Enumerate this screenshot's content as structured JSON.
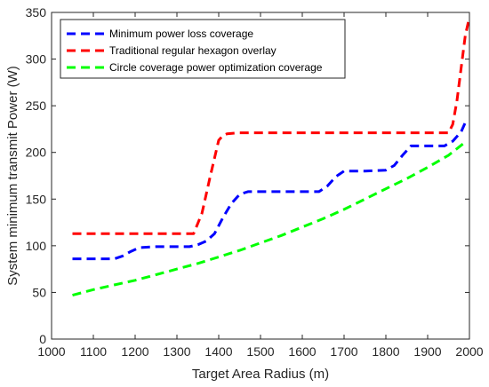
{
  "chart_data": {
    "type": "line",
    "title": "",
    "xlabel": "Target Area Radius (m)",
    "ylabel": "System minimum transmit Power (W)",
    "xlim": [
      1000,
      2000
    ],
    "ylim": [
      0,
      350
    ],
    "xticks": [
      1000,
      1100,
      1200,
      1300,
      1400,
      1500,
      1600,
      1700,
      1800,
      1900,
      2000
    ],
    "yticks": [
      0,
      50,
      100,
      150,
      200,
      250,
      300,
      350
    ],
    "grid": false,
    "legend_position": "top-left",
    "line_style": "dashed",
    "series": [
      {
        "name": "Minimum power loss coverage",
        "color": "#0000ff",
        "x": [
          1050,
          1100,
          1150,
          1170,
          1190,
          1210,
          1250,
          1300,
          1330,
          1350,
          1370,
          1390,
          1410,
          1430,
          1450,
          1470,
          1500,
          1550,
          1600,
          1640,
          1660,
          1680,
          1700,
          1750,
          1800,
          1820,
          1840,
          1860,
          1900,
          1940,
          1960,
          1980,
          1990
        ],
        "y": [
          86,
          86,
          86,
          89,
          94,
          98,
          99,
          99,
          99,
          101,
          105,
          113,
          130,
          145,
          155,
          158,
          158,
          158,
          158,
          158,
          164,
          174,
          180,
          180,
          181,
          186,
          197,
          207,
          207,
          207,
          212,
          222,
          232
        ]
      },
      {
        "name": "Traditional regular hexagon overlay",
        "color": "#ff0000",
        "x": [
          1050,
          1100,
          1200,
          1300,
          1340,
          1360,
          1380,
          1400,
          1410,
          1420,
          1450,
          1500,
          1600,
          1700,
          1800,
          1900,
          1950,
          1960,
          1970,
          1980,
          1990,
          2000
        ],
        "y": [
          113,
          113,
          113,
          113,
          113,
          135,
          175,
          213,
          218,
          220,
          221,
          221,
          221,
          221,
          221,
          221,
          221,
          230,
          255,
          290,
          325,
          345
        ]
      },
      {
        "name": "Circle coverage power optimization coverage",
        "color": "#00ff00",
        "x": [
          1050,
          1100,
          1150,
          1200,
          1250,
          1300,
          1350,
          1400,
          1450,
          1500,
          1550,
          1600,
          1650,
          1700,
          1750,
          1800,
          1850,
          1900,
          1950,
          1990
        ],
        "y": [
          47,
          53,
          58,
          63,
          69,
          75,
          81,
          88,
          95,
          103,
          111,
          120,
          129,
          139,
          150,
          161,
          172,
          184,
          197,
          211
        ]
      }
    ]
  }
}
